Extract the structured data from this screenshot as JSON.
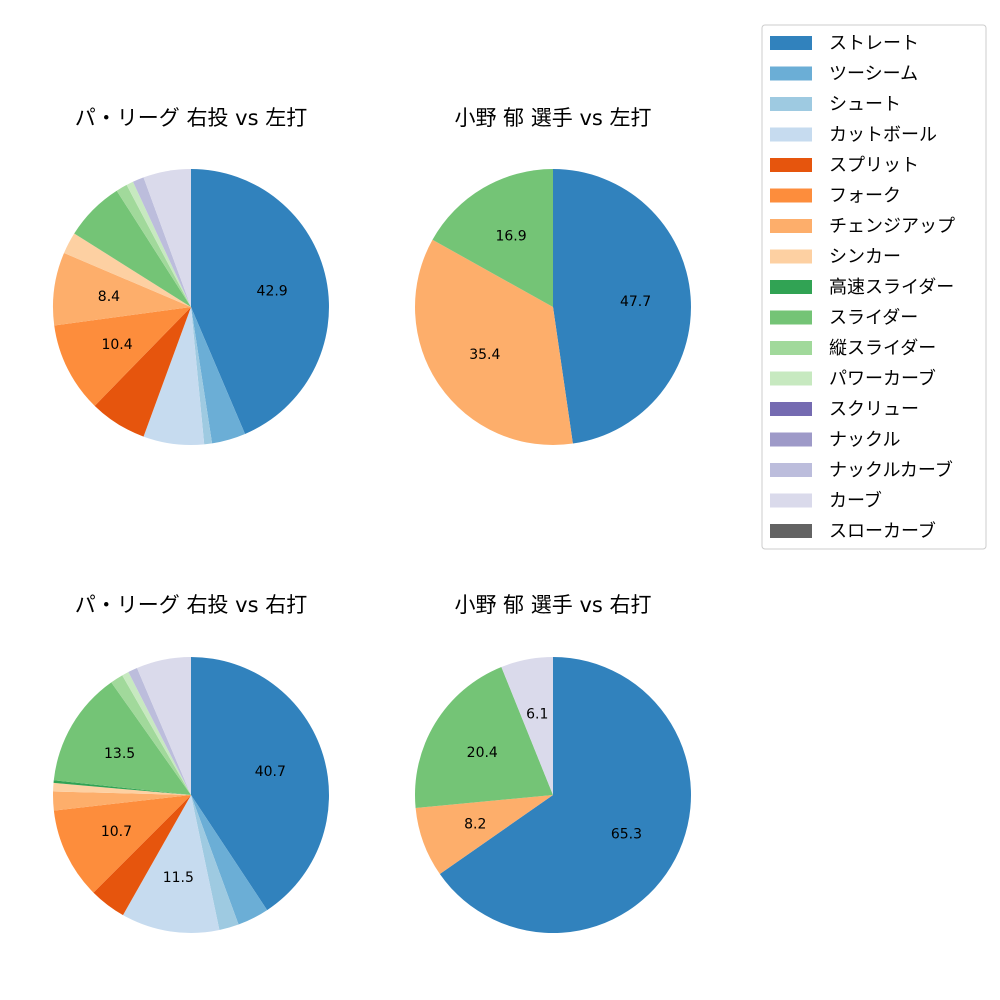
{
  "colors": {
    "ストレート": "#3182bd",
    "ツーシーム": "#6baed6",
    "シュート": "#9ecae1",
    "カットボール": "#c6dbef",
    "スプリット": "#e6550d",
    "フォーク": "#fd8d3c",
    "チェンジアップ": "#fdae6b",
    "シンカー": "#fdd0a2",
    "高速スライダー": "#31a354",
    "スライダー": "#74c476",
    "縦スライダー": "#a1d99b",
    "パワーカーブ": "#c7e9c0",
    "スクリュー": "#756bb1",
    "ナックル": "#9e9ac8",
    "ナックルカーブ": "#bcbddc",
    "カーブ": "#dadaeb",
    "スローカーブ": "#636363"
  },
  "legend": {
    "placement": "top-right",
    "entries": [
      "ストレート",
      "ツーシーム",
      "シュート",
      "カットボール",
      "スプリット",
      "フォーク",
      "チェンジアップ",
      "シンカー",
      "高速スライダー",
      "スライダー",
      "縦スライダー",
      "パワーカーブ",
      "スクリュー",
      "ナックル",
      "ナックルカーブ",
      "カーブ",
      "スローカーブ"
    ]
  },
  "chart_data": [
    {
      "type": "pie",
      "title": "パ・リーグ 右投 vs 左打",
      "slices": [
        {
          "label": "ストレート",
          "value": 42.9,
          "shown": "42.9"
        },
        {
          "label": "ツーシーム",
          "value": 3.9
        },
        {
          "label": "シュート",
          "value": 0.9
        },
        {
          "label": "カットボール",
          "value": 7.0
        },
        {
          "label": "スプリット",
          "value": 6.6
        },
        {
          "label": "フォーク",
          "value": 10.4,
          "shown": "10.4"
        },
        {
          "label": "チェンジアップ",
          "value": 8.4,
          "shown": "8.4"
        },
        {
          "label": "シンカー",
          "value": 2.5
        },
        {
          "label": "スライダー",
          "value": 6.9
        },
        {
          "label": "縦スライダー",
          "value": 1.3
        },
        {
          "label": "パワーカーブ",
          "value": 0.8
        },
        {
          "label": "ナックルカーブ",
          "value": 1.3
        },
        {
          "label": "カーブ",
          "value": 5.5
        }
      ]
    },
    {
      "type": "pie",
      "title": "小野 郁 選手 vs 左打",
      "slices": [
        {
          "label": "ストレート",
          "value": 47.7,
          "shown": "47.7"
        },
        {
          "label": "チェンジアップ",
          "value": 35.4,
          "shown": "35.4"
        },
        {
          "label": "スライダー",
          "value": 16.9,
          "shown": "16.9"
        }
      ]
    },
    {
      "type": "pie",
      "title": "パ・リーグ 右投 vs 右打",
      "slices": [
        {
          "label": "ストレート",
          "value": 40.7,
          "shown": "40.7"
        },
        {
          "label": "ツーシーム",
          "value": 3.7
        },
        {
          "label": "シュート",
          "value": 2.3
        },
        {
          "label": "カットボール",
          "value": 11.5,
          "shown": "11.5"
        },
        {
          "label": "スプリット",
          "value": 4.3
        },
        {
          "label": "フォーク",
          "value": 10.7,
          "shown": "10.7"
        },
        {
          "label": "チェンジアップ",
          "value": 2.2
        },
        {
          "label": "シンカー",
          "value": 1.0
        },
        {
          "label": "高速スライダー",
          "value": 0.3
        },
        {
          "label": "スライダー",
          "value": 13.5,
          "shown": "13.5"
        },
        {
          "label": "縦スライダー",
          "value": 1.5
        },
        {
          "label": "パワーカーブ",
          "value": 0.8
        },
        {
          "label": "ナックルカーブ",
          "value": 1.1
        },
        {
          "label": "カーブ",
          "value": 6.4
        }
      ]
    },
    {
      "type": "pie",
      "title": "小野 郁 選手 vs 右打",
      "slices": [
        {
          "label": "ストレート",
          "value": 65.3,
          "shown": "65.3"
        },
        {
          "label": "チェンジアップ",
          "value": 8.2,
          "shown": "8.2"
        },
        {
          "label": "スライダー",
          "value": 20.4,
          "shown": "20.4"
        },
        {
          "label": "カーブ",
          "value": 6.1,
          "shown": "6.1"
        }
      ]
    }
  ]
}
